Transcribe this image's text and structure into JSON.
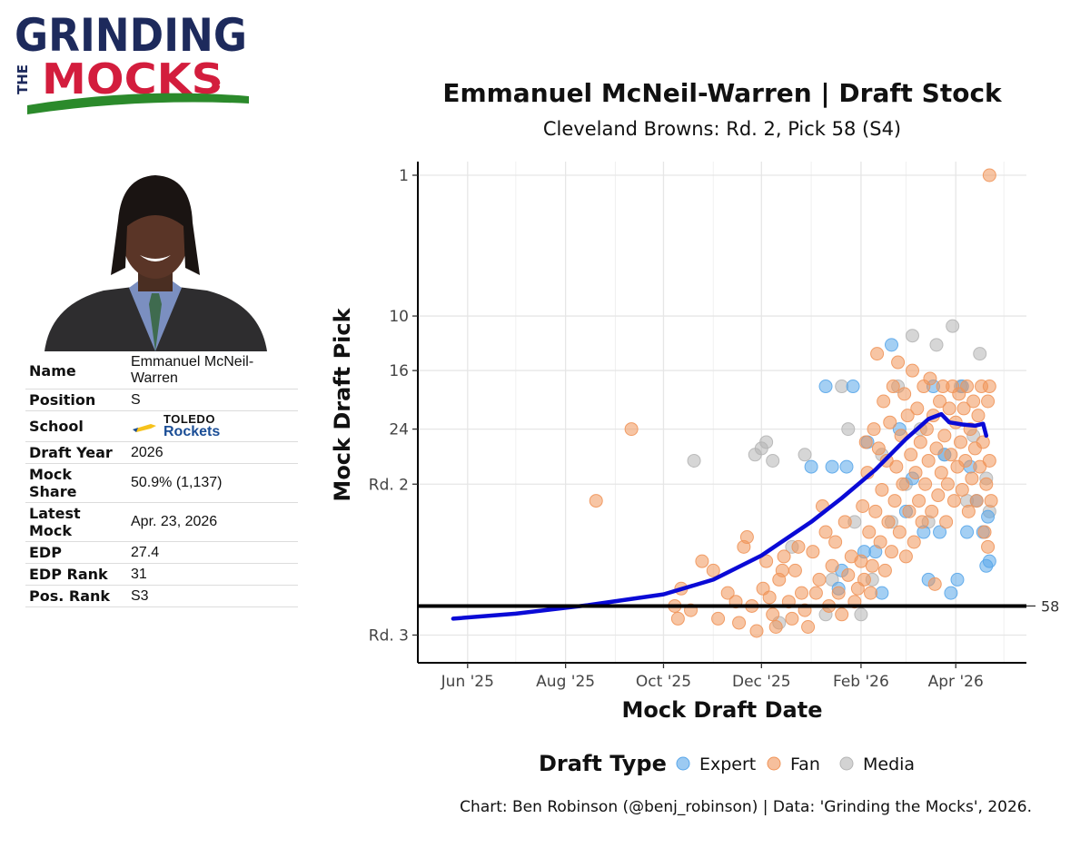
{
  "logo": {
    "line1": "GRINDING",
    "line2": "THE",
    "line3": "MOCKS"
  },
  "player": {
    "rows": [
      {
        "key": "Name",
        "value": "Emmanuel McNeil-Warren"
      },
      {
        "key": "Position",
        "value": "S"
      },
      {
        "key": "School",
        "value": ""
      },
      {
        "key": "Draft Year",
        "value": "2026"
      },
      {
        "key": "Mock Share",
        "value": "50.9% (1,137)"
      },
      {
        "key": "Latest Mock",
        "value": "Apr. 23, 2026"
      },
      {
        "key": "EDP",
        "value": "27.4"
      },
      {
        "key": "EDP Rank",
        "value": "31"
      },
      {
        "key": "Pos. Rank",
        "value": "S3"
      }
    ],
    "school_line1": "TOLEDO",
    "school_line2": "Rockets"
  },
  "chart_data": {
    "type": "scatter",
    "title": "Emmanuel McNeil-Warren | Draft Stock",
    "subtitle": "Cleveland Browns: Rd. 2, Pick 58 (S4)",
    "xlabel": "Mock Draft Date",
    "ylabel": "Mock Draft Pick",
    "x_range": [
      "2025-05-01",
      "2026-05-15"
    ],
    "y_scale": "sqrt",
    "y_range": [
      1,
      64
    ],
    "y_ticks": [
      {
        "value": 1,
        "label": "1"
      },
      {
        "value": 10,
        "label": "10"
      },
      {
        "value": 16,
        "label": "16"
      },
      {
        "value": 24,
        "label": "24"
      },
      {
        "value": 33,
        "label": "Rd. 2"
      },
      {
        "value": 65,
        "label": "Rd. 3"
      }
    ],
    "x_ticks": [
      {
        "value": "2025-06-01",
        "label": "Jun '25"
      },
      {
        "value": "2025-08-01",
        "label": "Aug '25"
      },
      {
        "value": "2025-10-01",
        "label": "Oct '25"
      },
      {
        "value": "2025-12-01",
        "label": "Dec '25"
      },
      {
        "value": "2026-02-01",
        "label": "Feb '26"
      },
      {
        "value": "2026-04-01",
        "label": "Apr '26"
      }
    ],
    "reference_line": {
      "value": 58,
      "label": "58"
    },
    "grid": true,
    "legend": {
      "title": "Draft Type",
      "placement": "bottom",
      "items": [
        {
          "name": "Expert",
          "color": "#5aa7ea"
        },
        {
          "name": "Fan",
          "color": "#f0955a"
        },
        {
          "name": "Media",
          "color": "#b5b5b5"
        }
      ]
    },
    "trend": {
      "color": "#0a0ad6",
      "points": [
        [
          "2025-05-23",
          61.0
        ],
        [
          "2025-07-01",
          59.8
        ],
        [
          "2025-08-15",
          57.8
        ],
        [
          "2025-10-01",
          55.3
        ],
        [
          "2025-11-01",
          52.0
        ],
        [
          "2025-12-01",
          46.8
        ],
        [
          "2026-01-01",
          40.0
        ],
        [
          "2026-01-20",
          35.5
        ],
        [
          "2026-02-10",
          30.5
        ],
        [
          "2026-03-01",
          25.5
        ],
        [
          "2026-03-15",
          22.5
        ],
        [
          "2026-03-23",
          21.8
        ],
        [
          "2026-03-28",
          23.0
        ],
        [
          "2026-04-05",
          23.3
        ],
        [
          "2026-04-13",
          23.5
        ],
        [
          "2026-04-18",
          23.2
        ],
        [
          "2026-04-20",
          25.0
        ]
      ]
    },
    "series": [
      {
        "name": "Expert",
        "points": [
          [
            "2026-01-01",
            30
          ],
          [
            "2026-01-10",
            18
          ],
          [
            "2026-01-14",
            30
          ],
          [
            "2026-01-18",
            54
          ],
          [
            "2026-01-20",
            50
          ],
          [
            "2026-01-23",
            30
          ],
          [
            "2026-01-27",
            18
          ],
          [
            "2026-02-03",
            46
          ],
          [
            "2026-02-05",
            26
          ],
          [
            "2026-02-10",
            46
          ],
          [
            "2026-02-14",
            55
          ],
          [
            "2026-02-20",
            13
          ],
          [
            "2026-02-25",
            24
          ],
          [
            "2026-03-01",
            38
          ],
          [
            "2026-03-05",
            32
          ],
          [
            "2026-03-12",
            42
          ],
          [
            "2026-03-15",
            52
          ],
          [
            "2026-03-18",
            18
          ],
          [
            "2026-03-22",
            42
          ],
          [
            "2026-03-25",
            28
          ],
          [
            "2026-03-29",
            55
          ],
          [
            "2026-04-02",
            52
          ],
          [
            "2026-04-05",
            18
          ],
          [
            "2026-04-08",
            42
          ],
          [
            "2026-04-10",
            30
          ],
          [
            "2026-04-14",
            36
          ],
          [
            "2026-04-18",
            42
          ],
          [
            "2026-04-20",
            49
          ],
          [
            "2026-04-21",
            39
          ],
          [
            "2026-04-22",
            48
          ]
        ]
      },
      {
        "name": "Fan",
        "points": [
          [
            "2025-08-20",
            36
          ],
          [
            "2025-09-11",
            24
          ],
          [
            "2025-10-08",
            58
          ],
          [
            "2025-10-10",
            61
          ],
          [
            "2025-10-12",
            54
          ],
          [
            "2025-10-18",
            59
          ],
          [
            "2025-10-25",
            48
          ],
          [
            "2025-11-01",
            50
          ],
          [
            "2025-11-04",
            61
          ],
          [
            "2025-11-10",
            55
          ],
          [
            "2025-11-15",
            57
          ],
          [
            "2025-11-17",
            62
          ],
          [
            "2025-11-20",
            45
          ],
          [
            "2025-11-22",
            43
          ],
          [
            "2025-11-25",
            58
          ],
          [
            "2025-11-28",
            64
          ],
          [
            "2025-12-02",
            54
          ],
          [
            "2025-12-04",
            48
          ],
          [
            "2025-12-06",
            56
          ],
          [
            "2025-12-08",
            60
          ],
          [
            "2025-12-10",
            63
          ],
          [
            "2025-12-12",
            52
          ],
          [
            "2025-12-14",
            50
          ],
          [
            "2025-12-15",
            47
          ],
          [
            "2025-12-18",
            57
          ],
          [
            "2025-12-20",
            61
          ],
          [
            "2025-12-22",
            50
          ],
          [
            "2025-12-24",
            45
          ],
          [
            "2025-12-26",
            55
          ],
          [
            "2025-12-28",
            59
          ],
          [
            "2025-12-30",
            63
          ],
          [
            "2026-01-02",
            46
          ],
          [
            "2026-01-04",
            55
          ],
          [
            "2026-01-06",
            52
          ],
          [
            "2026-01-08",
            37
          ],
          [
            "2026-01-10",
            42
          ],
          [
            "2026-01-12",
            58
          ],
          [
            "2026-01-14",
            49
          ],
          [
            "2026-01-16",
            44
          ],
          [
            "2026-01-18",
            55
          ],
          [
            "2026-01-20",
            60
          ],
          [
            "2026-01-22",
            40
          ],
          [
            "2026-01-24",
            51
          ],
          [
            "2026-01-26",
            47
          ],
          [
            "2026-01-28",
            57
          ],
          [
            "2026-01-30",
            54
          ],
          [
            "2026-02-01",
            48
          ],
          [
            "2026-02-02",
            37
          ],
          [
            "2026-02-03",
            52
          ],
          [
            "2026-02-04",
            26
          ],
          [
            "2026-02-05",
            31
          ],
          [
            "2026-02-06",
            42
          ],
          [
            "2026-02-07",
            55
          ],
          [
            "2026-02-08",
            49
          ],
          [
            "2026-02-09",
            24
          ],
          [
            "2026-02-10",
            38
          ],
          [
            "2026-02-11",
            14
          ],
          [
            "2026-02-12",
            27
          ],
          [
            "2026-02-13",
            44
          ],
          [
            "2026-02-14",
            34
          ],
          [
            "2026-02-15",
            20
          ],
          [
            "2026-02-16",
            50
          ],
          [
            "2026-02-17",
            29
          ],
          [
            "2026-02-18",
            40
          ],
          [
            "2026-02-19",
            23
          ],
          [
            "2026-02-20",
            46
          ],
          [
            "2026-02-21",
            18
          ],
          [
            "2026-02-22",
            36
          ],
          [
            "2026-02-23",
            30
          ],
          [
            "2026-02-24",
            15
          ],
          [
            "2026-02-25",
            42
          ],
          [
            "2026-02-26",
            25
          ],
          [
            "2026-02-27",
            33
          ],
          [
            "2026-02-28",
            19
          ],
          [
            "2026-03-01",
            47
          ],
          [
            "2026-03-02",
            22
          ],
          [
            "2026-03-03",
            38
          ],
          [
            "2026-03-04",
            28
          ],
          [
            "2026-03-05",
            16
          ],
          [
            "2026-03-06",
            44
          ],
          [
            "2026-03-07",
            31
          ],
          [
            "2026-03-08",
            21
          ],
          [
            "2026-03-09",
            36
          ],
          [
            "2026-03-10",
            26
          ],
          [
            "2026-03-11",
            40
          ],
          [
            "2026-03-12",
            18
          ],
          [
            "2026-03-13",
            33
          ],
          [
            "2026-03-14",
            24
          ],
          [
            "2026-03-15",
            29
          ],
          [
            "2026-03-16",
            17
          ],
          [
            "2026-03-17",
            38
          ],
          [
            "2026-03-18",
            22
          ],
          [
            "2026-03-19",
            53
          ],
          [
            "2026-03-20",
            27
          ],
          [
            "2026-03-21",
            35
          ],
          [
            "2026-03-22",
            20
          ],
          [
            "2026-03-23",
            31
          ],
          [
            "2026-03-24",
            18
          ],
          [
            "2026-03-25",
            25
          ],
          [
            "2026-03-26",
            40
          ],
          [
            "2026-03-27",
            33
          ],
          [
            "2026-03-28",
            21
          ],
          [
            "2026-03-29",
            28
          ],
          [
            "2026-03-30",
            18
          ],
          [
            "2026-03-31",
            36
          ],
          [
            "2026-04-01",
            23
          ],
          [
            "2026-04-02",
            30
          ],
          [
            "2026-04-03",
            19
          ],
          [
            "2026-04-04",
            26
          ],
          [
            "2026-04-05",
            34
          ],
          [
            "2026-04-06",
            21
          ],
          [
            "2026-04-07",
            29
          ],
          [
            "2026-04-08",
            18
          ],
          [
            "2026-04-09",
            38
          ],
          [
            "2026-04-10",
            24
          ],
          [
            "2026-04-11",
            32
          ],
          [
            "2026-04-12",
            20
          ],
          [
            "2026-04-13",
            27
          ],
          [
            "2026-04-14",
            36
          ],
          [
            "2026-04-15",
            22
          ],
          [
            "2026-04-16",
            30
          ],
          [
            "2026-04-17",
            18
          ],
          [
            "2026-04-18",
            26
          ],
          [
            "2026-04-19",
            42
          ],
          [
            "2026-04-20",
            33
          ],
          [
            "2026-04-21",
            20
          ],
          [
            "2026-04-21",
            45
          ],
          [
            "2026-04-22",
            29
          ],
          [
            "2026-04-22",
            18
          ],
          [
            "2026-04-22",
            1
          ],
          [
            "2026-04-23",
            36
          ]
        ]
      },
      {
        "name": "Media",
        "points": [
          [
            "2025-10-20",
            29
          ],
          [
            "2025-11-27",
            28
          ],
          [
            "2025-12-01",
            27
          ],
          [
            "2025-12-04",
            26
          ],
          [
            "2025-12-08",
            29
          ],
          [
            "2025-12-12",
            62
          ],
          [
            "2025-12-20",
            45
          ],
          [
            "2025-12-28",
            28
          ],
          [
            "2026-01-10",
            60
          ],
          [
            "2026-01-14",
            52
          ],
          [
            "2026-01-20",
            18
          ],
          [
            "2026-01-24",
            24
          ],
          [
            "2026-01-28",
            40
          ],
          [
            "2026-02-01",
            60
          ],
          [
            "2026-02-08",
            52
          ],
          [
            "2026-02-14",
            28
          ],
          [
            "2026-02-20",
            40
          ],
          [
            "2026-02-24",
            18
          ],
          [
            "2026-03-01",
            33
          ],
          [
            "2026-03-05",
            12
          ],
          [
            "2026-03-10",
            24
          ],
          [
            "2026-03-15",
            40
          ],
          [
            "2026-03-20",
            13
          ],
          [
            "2026-03-25",
            28
          ],
          [
            "2026-03-30",
            11
          ],
          [
            "2026-04-04",
            18
          ],
          [
            "2026-04-08",
            36
          ],
          [
            "2026-04-12",
            25
          ],
          [
            "2026-04-16",
            14
          ],
          [
            "2026-04-20",
            32
          ],
          [
            "2026-04-22",
            38
          ]
        ]
      }
    ],
    "caption": "Chart: Ben Robinson (@benj_robinson) | Data: 'Grinding the Mocks', 2026."
  }
}
